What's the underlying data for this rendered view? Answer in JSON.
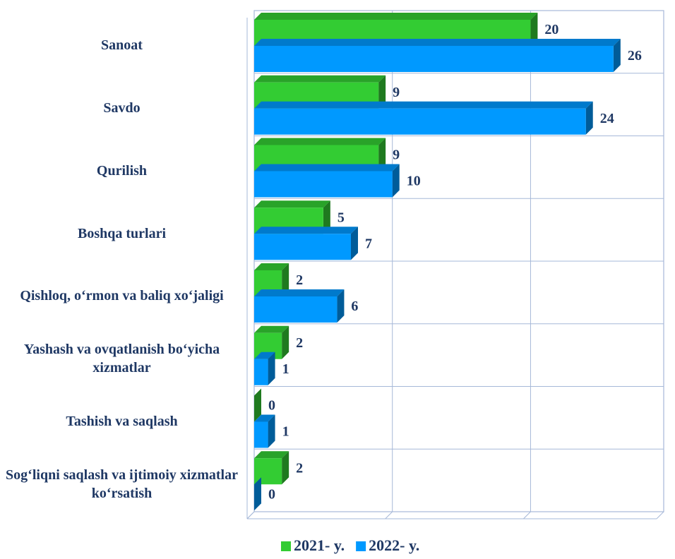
{
  "chart_data": {
    "type": "bar",
    "orientation": "horizontal",
    "categories": [
      "Sanoat",
      "Savdo",
      "Qurilish",
      "Boshqa turlari",
      "Qishloq, o‘rmon va baliq xo‘jaligi",
      "Yashash va ovqatlanish bo‘yicha xizmatlar",
      "Tashish va saqlash",
      "Sog‘liqni saqlash va ijtimoiy xizmatlar ko‘rsatish"
    ],
    "series": [
      {
        "name": "2021- y.",
        "color": "#33cc33",
        "values": [
          20,
          9,
          9,
          5,
          2,
          2,
          0,
          2
        ]
      },
      {
        "name": "2022- y.",
        "color": "#0099ff",
        "values": [
          26,
          24,
          10,
          7,
          6,
          1,
          1,
          0
        ]
      }
    ],
    "xlim": [
      0,
      28
    ],
    "xticks": [
      0,
      10,
      20
    ],
    "grid": true,
    "legend": "bottom"
  }
}
